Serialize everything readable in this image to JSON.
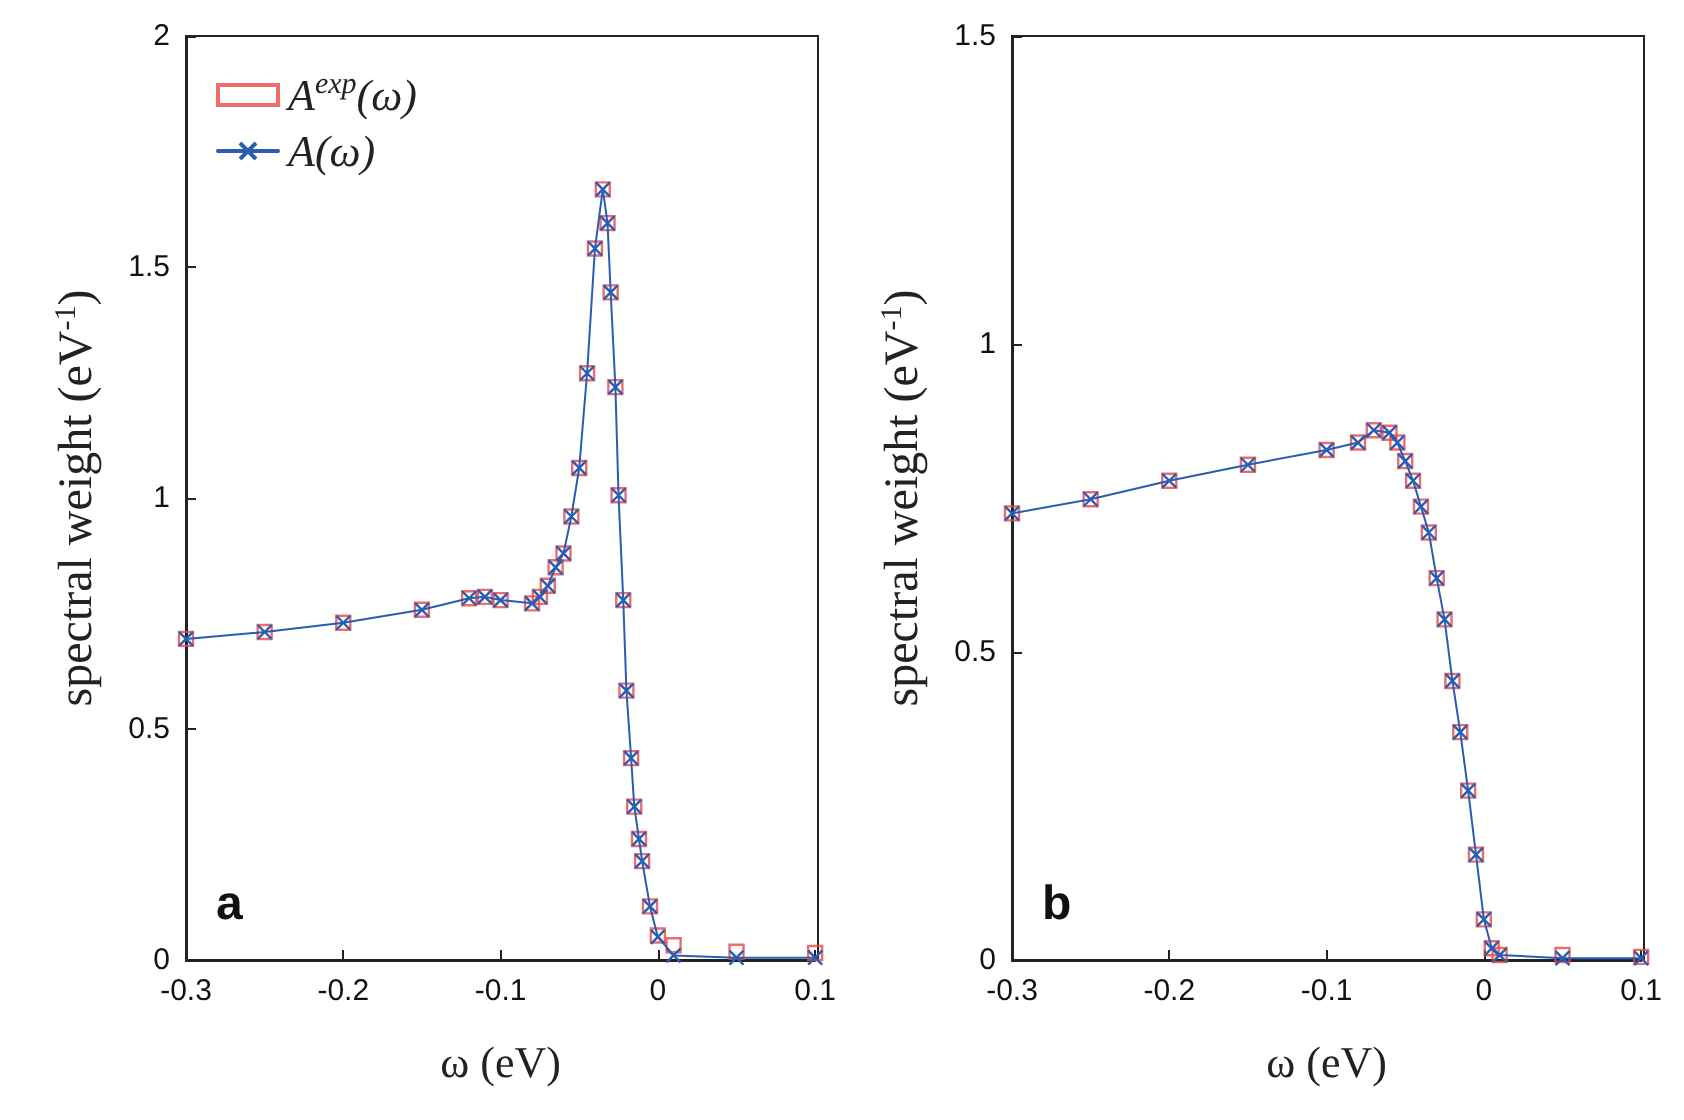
{
  "chart_data": [
    {
      "type": "scatter",
      "xlabel": "ω (eV)",
      "ylabel": "spectral weight (eV$^{-1}$)",
      "annotations": [
        "a"
      ],
      "legend": "top left",
      "grid": false,
      "xlim": [
        -0.3,
        0.1
      ],
      "ylim": [
        0,
        2
      ],
      "xticks": [
        -0.3,
        -0.2,
        -0.1,
        0,
        0.1
      ],
      "yticks": [
        0,
        0.5,
        1,
        1.5,
        2
      ],
      "x": [
        -0.3,
        -0.25,
        -0.2,
        -0.15,
        -0.12,
        -0.11,
        -0.1,
        -0.08,
        -0.075,
        -0.07,
        -0.065,
        -0.06,
        -0.055,
        -0.05,
        -0.045,
        -0.04,
        -0.035,
        -0.032,
        -0.03,
        -0.027,
        -0.025,
        -0.022,
        -0.02,
        -0.017,
        -0.015,
        -0.012,
        -0.01,
        -0.005,
        0,
        0.01,
        0.05,
        0.1
      ],
      "series": [
        {
          "name": "A$^{exp}$(ω)",
          "marker": "square",
          "color": "#e8474a",
          "values": [
            0.695,
            0.71,
            0.73,
            0.758,
            0.783,
            0.786,
            0.779,
            0.772,
            0.786,
            0.81,
            0.85,
            0.88,
            0.96,
            1.065,
            1.27,
            1.54,
            1.668,
            1.595,
            1.445,
            1.24,
            1.006,
            0.779,
            0.583,
            0.437,
            0.332,
            0.262,
            0.214,
            0.116,
            0.053,
            0.032,
            0.018,
            0.015
          ]
        },
        {
          "name": "A(ω)",
          "type": "line",
          "marker": "cross",
          "color": "#2a5db0",
          "values": [
            0.695,
            0.71,
            0.73,
            0.758,
            0.783,
            0.786,
            0.779,
            0.772,
            0.786,
            0.81,
            0.85,
            0.88,
            0.96,
            1.065,
            1.27,
            1.54,
            1.668,
            1.595,
            1.445,
            1.24,
            1.006,
            0.779,
            0.583,
            0.437,
            0.332,
            0.262,
            0.214,
            0.116,
            0.05,
            0.01,
            0.005,
            0.005
          ]
        }
      ]
    },
    {
      "type": "scatter",
      "xlabel": "ω (eV)",
      "ylabel": "spectral weight (eV$^{-1}$)",
      "annotations": [
        "b"
      ],
      "legend": false,
      "grid": false,
      "xlim": [
        -0.3,
        0.1
      ],
      "ylim": [
        0,
        1.5
      ],
      "xticks": [
        -0.3,
        -0.2,
        -0.1,
        0,
        0.1
      ],
      "yticks": [
        0,
        0.5,
        1,
        1.5
      ],
      "x": [
        -0.3,
        -0.25,
        -0.2,
        -0.15,
        -0.1,
        -0.08,
        -0.07,
        -0.06,
        -0.055,
        -0.05,
        -0.045,
        -0.04,
        -0.035,
        -0.03,
        -0.025,
        -0.02,
        -0.015,
        -0.01,
        -0.005,
        0,
        0.005,
        0.01,
        0.05,
        0.1
      ],
      "series": [
        {
          "marker": "square",
          "color": "#e8474a",
          "values": [
            0.725,
            0.748,
            0.778,
            0.804,
            0.828,
            0.84,
            0.86,
            0.856,
            0.84,
            0.81,
            0.778,
            0.736,
            0.694,
            0.62,
            0.553,
            0.453,
            0.37,
            0.275,
            0.171,
            0.066,
            0.019,
            0.008,
            0.008,
            0.005
          ]
        },
        {
          "type": "line",
          "marker": "cross",
          "color": "#2a5db0",
          "values": [
            0.725,
            0.748,
            0.778,
            0.804,
            0.828,
            0.84,
            0.86,
            0.856,
            0.84,
            0.81,
            0.778,
            0.736,
            0.694,
            0.62,
            0.553,
            0.453,
            0.37,
            0.275,
            0.171,
            0.066,
            0.019,
            0.008,
            0.003,
            0.003
          ]
        }
      ]
    }
  ]
}
